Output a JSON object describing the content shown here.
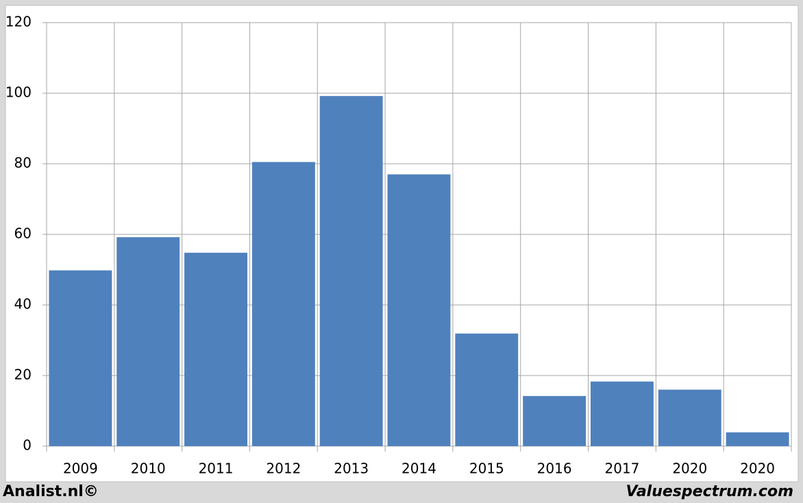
{
  "chart_data": {
    "type": "bar",
    "categories": [
      "2009",
      "2010",
      "2011",
      "2012",
      "2013",
      "2014",
      "2015",
      "2016",
      "2017",
      "2020",
      "2020"
    ],
    "values": [
      49.8,
      59.2,
      54.8,
      80.5,
      99.2,
      77,
      31.9,
      14.2,
      18.3,
      16,
      3.9
    ],
    "color": "#4f81bd",
    "ylim": [
      0,
      120
    ],
    "yticks": [
      0,
      20,
      40,
      60,
      80,
      100,
      120
    ],
    "grid": true,
    "footer_left": "Analist.nl©",
    "footer_right": "Valuespectrum.com"
  }
}
